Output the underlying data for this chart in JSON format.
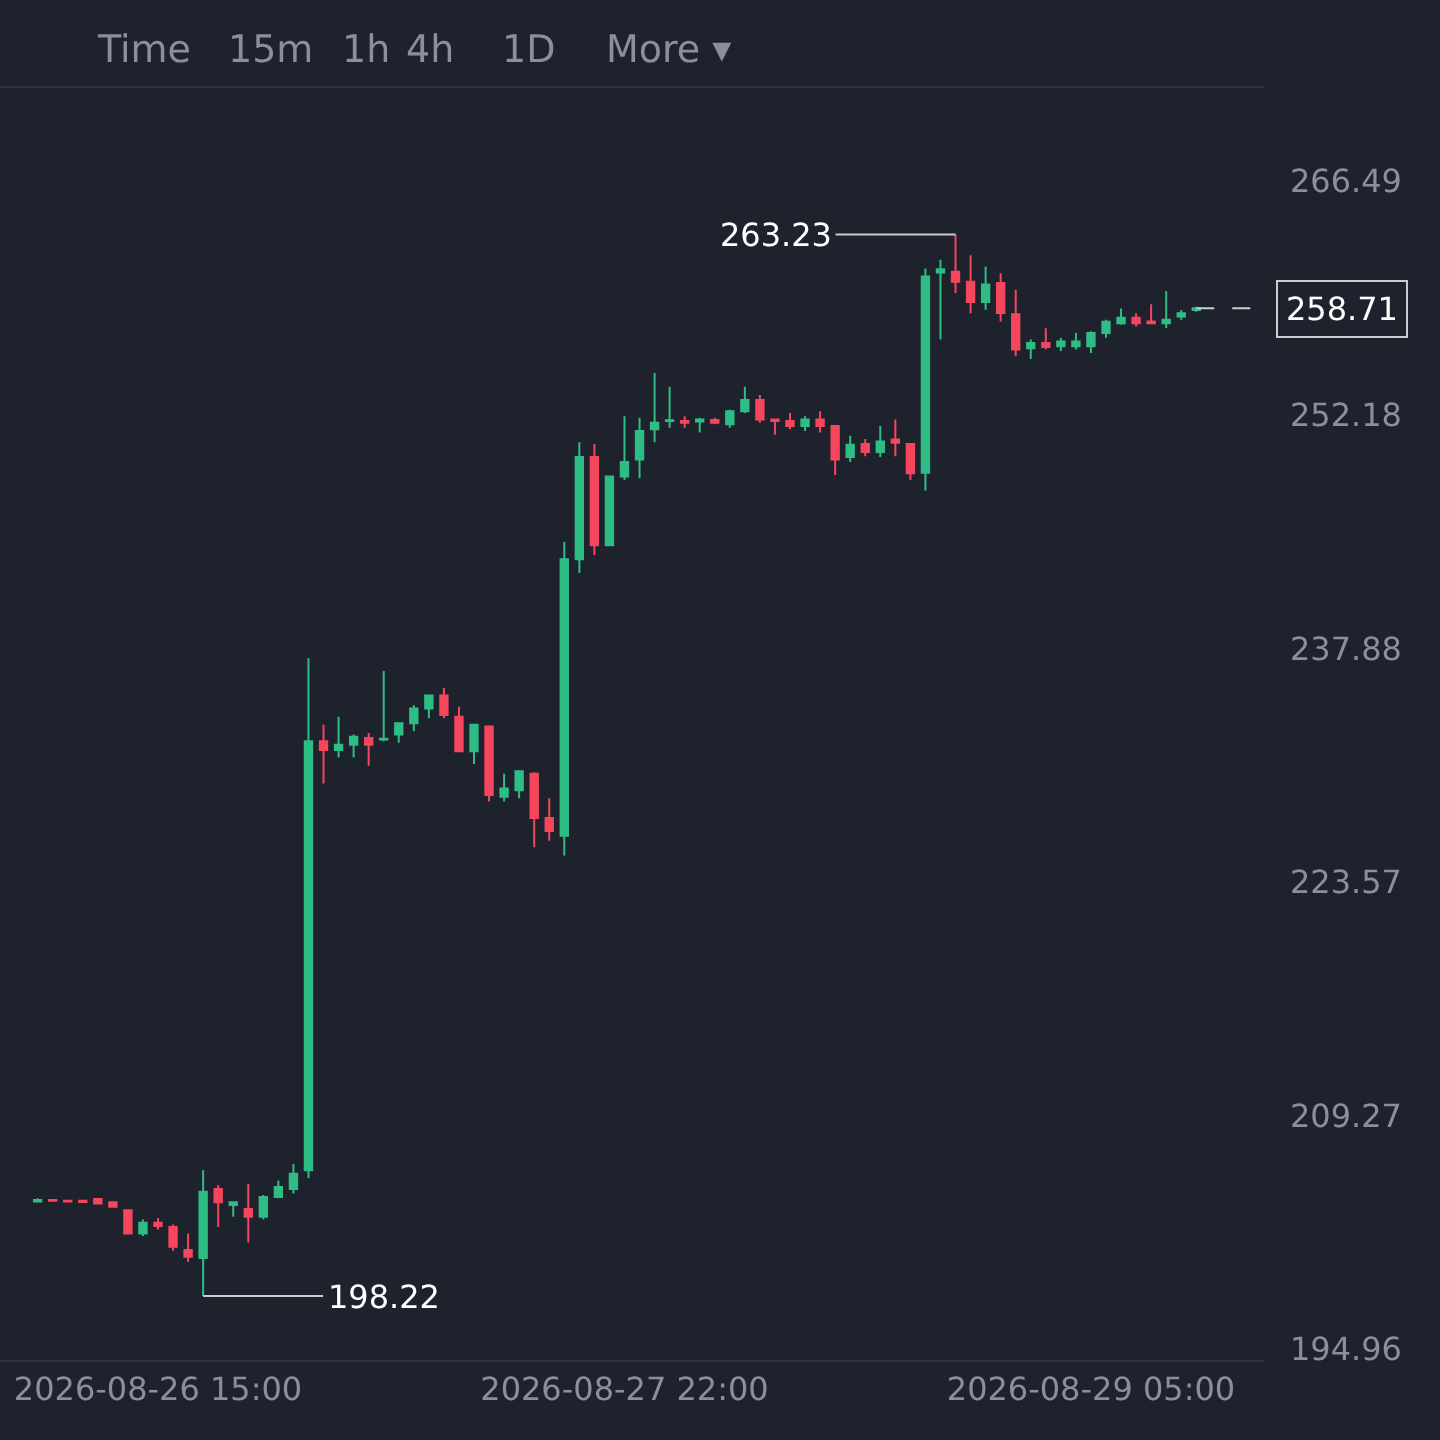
{
  "chart_data": {
    "type": "candlestick",
    "x": [
      "2026-08-26T07:00",
      "2026-08-26T08:00",
      "2026-08-26T09:00",
      "2026-08-26T10:00",
      "2026-08-26T11:00",
      "2026-08-26T12:00",
      "2026-08-26T13:00",
      "2026-08-26T14:00",
      "2026-08-26T15:00",
      "2026-08-26T16:00",
      "2026-08-26T17:00",
      "2026-08-26T18:00",
      "2026-08-26T19:00",
      "2026-08-26T20:00",
      "2026-08-26T21:00",
      "2026-08-26T22:00",
      "2026-08-26T23:00",
      "2026-08-27T00:00",
      "2026-08-27T01:00",
      "2026-08-27T02:00",
      "2026-08-27T03:00",
      "2026-08-27T04:00",
      "2026-08-27T05:00",
      "2026-08-27T06:00",
      "2026-08-27T07:00",
      "2026-08-27T08:00",
      "2026-08-27T09:00",
      "2026-08-27T10:00",
      "2026-08-27T11:00",
      "2026-08-27T12:00",
      "2026-08-27T13:00",
      "2026-08-27T14:00",
      "2026-08-27T15:00",
      "2026-08-27T16:00",
      "2026-08-27T17:00",
      "2026-08-27T18:00",
      "2026-08-27T19:00",
      "2026-08-27T20:00",
      "2026-08-27T21:00",
      "2026-08-27T22:00",
      "2026-08-27T23:00",
      "2026-08-28T00:00",
      "2026-08-28T01:00",
      "2026-08-28T02:00",
      "2026-08-28T03:00",
      "2026-08-28T04:00",
      "2026-08-28T05:00",
      "2026-08-28T06:00",
      "2026-08-28T07:00",
      "2026-08-28T08:00",
      "2026-08-28T09:00",
      "2026-08-28T10:00",
      "2026-08-28T11:00",
      "2026-08-28T12:00",
      "2026-08-28T13:00",
      "2026-08-28T14:00",
      "2026-08-28T15:00",
      "2026-08-28T16:00",
      "2026-08-28T17:00",
      "2026-08-28T18:00",
      "2026-08-28T19:00",
      "2026-08-28T20:00",
      "2026-08-28T21:00",
      "2026-08-28T22:00",
      "2026-08-28T23:00",
      "2026-08-29T00:00",
      "2026-08-29T01:00",
      "2026-08-29T02:00",
      "2026-08-29T03:00",
      "2026-08-29T04:00",
      "2026-08-29T05:00",
      "2026-08-29T06:00",
      "2026-08-29T07:00",
      "2026-08-29T08:00",
      "2026-08-29T09:00",
      "2026-08-29T10:00",
      "2026-08-29T11:00",
      "2026-08-29T12:00"
    ],
    "ohlc": [
      [
        204.0,
        204.2,
        204.0,
        204.1
      ],
      [
        204.1,
        204.15,
        204.0,
        204.05
      ],
      [
        204.05,
        204.1,
        203.95,
        204.0
      ],
      [
        204.05,
        204.1,
        203.95,
        203.98
      ],
      [
        204.16,
        204.2,
        203.85,
        203.88
      ],
      [
        203.96,
        204.0,
        203.65,
        203.68
      ],
      [
        203.47,
        203.5,
        202.0,
        202.05
      ],
      [
        202.05,
        202.9,
        201.9,
        202.7
      ],
      [
        202.7,
        203.0,
        202.3,
        202.5
      ],
      [
        202.45,
        202.6,
        200.99,
        201.23
      ],
      [
        201.03,
        202.05,
        200.3,
        200.62
      ],
      [
        200.54,
        205.92,
        198.22,
        204.61
      ],
      [
        204.78,
        205.02,
        202.45,
        203.96
      ],
      [
        203.8,
        204.0,
        203.07,
        203.96
      ],
      [
        203.55,
        205.1,
        201.5,
        203.07
      ],
      [
        203.07,
        204.4,
        202.9,
        204.29
      ],
      [
        204.29,
        205.3,
        204.2,
        204.9
      ],
      [
        204.78,
        206.3,
        204.5,
        205.71
      ],
      [
        205.92,
        237.28,
        205.43,
        232.19
      ],
      [
        232.19,
        233.2,
        229.6,
        231.66
      ],
      [
        231.66,
        233.7,
        231.2,
        231.98
      ],
      [
        231.98,
        232.6,
        231.2,
        232.47
      ],
      [
        232.39,
        232.7,
        230.7,
        231.98
      ],
      [
        232.3,
        236.5,
        232.2,
        232.35
      ],
      [
        232.6,
        233.3,
        232.1,
        233.3
      ],
      [
        233.3,
        234.4,
        232.8,
        234.2
      ],
      [
        234.2,
        235.0,
        233.6,
        235.0
      ],
      [
        235.0,
        235.45,
        233.6,
        233.8
      ],
      [
        233.7,
        234.3,
        231.58,
        231.58
      ],
      [
        231.58,
        233.2,
        230.8,
        233.2
      ],
      [
        233.1,
        233.1,
        228.5,
        228.9
      ],
      [
        228.8,
        230.2,
        228.5,
        229.3
      ],
      [
        229.2,
        230.4,
        228.7,
        230.35
      ],
      [
        230.2,
        230.3,
        225.7,
        227.5
      ],
      [
        227.5,
        228.7,
        226.1,
        226.7
      ],
      [
        226.4,
        244.4,
        225.2,
        243.34
      ],
      [
        243.34,
        250.5,
        242.5,
        249.6
      ],
      [
        249.6,
        250.4,
        243.6,
        244.2
      ],
      [
        244.2,
        248.4,
        244.2,
        248.4
      ],
      [
        248.4,
        252.1,
        248.2,
        249.3
      ],
      [
        249.45,
        252.0,
        248.3,
        251.2
      ],
      [
        251.3,
        254.75,
        250.5,
        251.7
      ],
      [
        251.8,
        253.9,
        251.4,
        251.85
      ],
      [
        251.81,
        252.1,
        251.4,
        251.7
      ],
      [
        251.77,
        252.0,
        251.1,
        251.9
      ],
      [
        251.86,
        252.0,
        251.6,
        251.7
      ],
      [
        251.6,
        252.5,
        251.4,
        252.4
      ],
      [
        252.4,
        253.9,
        252.3,
        253.1
      ],
      [
        253.1,
        253.4,
        251.7,
        251.9
      ],
      [
        251.9,
        251.9,
        250.96,
        251.8
      ],
      [
        251.8,
        252.3,
        251.3,
        251.5
      ],
      [
        251.5,
        252.1,
        251.2,
        251.9
      ],
      [
        251.9,
        252.4,
        251.1,
        251.5
      ],
      [
        251.5,
        251.5,
        248.5,
        249.45
      ],
      [
        249.6,
        250.9,
        249.3,
        250.35
      ],
      [
        250.4,
        250.7,
        249.65,
        249.9
      ],
      [
        249.9,
        251.5,
        249.6,
        250.55
      ],
      [
        250.67,
        251.9,
        249.65,
        250.47
      ],
      [
        250.4,
        250.4,
        248.2,
        248.6
      ],
      [
        248.64,
        261.15,
        247.55,
        260.66
      ],
      [
        260.9,
        261.68,
        256.8,
        261.1
      ],
      [
        260.94,
        263.23,
        259.64,
        260.33
      ],
      [
        260.33,
        261.96,
        258.4,
        259.1
      ],
      [
        259.1,
        261.27,
        258.62,
        260.17
      ],
      [
        260.25,
        260.86,
        257.9,
        258.42
      ],
      [
        258.34,
        259.84,
        255.77,
        256.18
      ],
      [
        256.26,
        256.8,
        255.6,
        256.59
      ],
      [
        256.59,
        257.48,
        256.18,
        256.34
      ],
      [
        256.38,
        256.9,
        256.1,
        256.67
      ],
      [
        256.38,
        257.2,
        256.18,
        256.67
      ],
      [
        256.38,
        257.3,
        255.97,
        257.2
      ],
      [
        257.2,
        258.0,
        256.9,
        257.89
      ],
      [
        257.8,
        258.7,
        257.7,
        258.13
      ],
      [
        258.13,
        258.4,
        257.6,
        257.8
      ],
      [
        257.9,
        258.95,
        257.8,
        257.8
      ],
      [
        257.8,
        259.76,
        257.5,
        258.0
      ],
      [
        258.2,
        258.6,
        258.0,
        258.4
      ],
      [
        258.6,
        258.8,
        258.5,
        258.71
      ]
    ],
    "colors": [
      "#2ebd85",
      "#f6465d",
      "#f6465d",
      "#f6465d",
      "#f6465d",
      "#f6465d",
      "#f6465d",
      "#2ebd85",
      "#f6465d",
      "#f6465d",
      "#f6465d",
      "#2ebd85",
      "#f6465d",
      "#2ebd85",
      "#f6465d",
      "#2ebd85",
      "#2ebd85",
      "#2ebd85",
      "#2ebd85",
      "#f6465d",
      "#2ebd85",
      "#2ebd85",
      "#f6465d",
      "#2ebd85",
      "#2ebd85",
      "#2ebd85",
      "#2ebd85",
      "#f6465d",
      "#f6465d",
      "#2ebd85",
      "#f6465d",
      "#2ebd85",
      "#2ebd85",
      "#f6465d",
      "#f6465d",
      "#2ebd85",
      "#2ebd85",
      "#f6465d",
      "#2ebd85",
      "#2ebd85",
      "#2ebd85",
      "#2ebd85",
      "#2ebd85",
      "#f6465d",
      "#2ebd85",
      "#f6465d",
      "#2ebd85",
      "#2ebd85",
      "#f6465d",
      "#f6465d",
      "#f6465d",
      "#2ebd85",
      "#f6465d",
      "#f6465d",
      "#2ebd85",
      "#f6465d",
      "#2ebd85",
      "#f6465d",
      "#f6465d",
      "#2ebd85",
      "#2ebd85",
      "#f6465d",
      "#f6465d",
      "#2ebd85",
      "#f6465d",
      "#f6465d",
      "#2ebd85",
      "#f6465d",
      "#2ebd85",
      "#2ebd85",
      "#2ebd85",
      "#2ebd85",
      "#2ebd85",
      "#f6465d",
      "#f6465d",
      "#2ebd85",
      "#2ebd85",
      "#2ebd85"
    ],
    "xlim": [
      "2026-08-26T04:30",
      "2026-08-29T16:30"
    ],
    "xticks": [
      {
        "value": "2026-08-26T15:00",
        "label": "2026-08-26 15:00"
      },
      {
        "value": "2026-08-27T22:00",
        "label": "2026-08-27 22:00"
      },
      {
        "value": "2026-08-29T05:00",
        "label": "2026-08-29 05:00"
      }
    ],
    "ylim": [
      194.3,
      272.2
    ],
    "yticks": [
      194.96,
      209.27,
      223.57,
      237.88,
      252.18,
      266.49
    ],
    "ref_lines": [
      {
        "axis": "y",
        "value": 258.71,
        "label": "258.71",
        "line_style": "dashed",
        "color": "#c8ccd4"
      }
    ],
    "annotations": [
      "Time",
      "15m",
      "1h",
      "4h",
      "1D",
      "More ▾",
      {
        "text": "263.23",
        "x": "2026-08-28T20:00",
        "y": 263.23
      },
      {
        "text": "198.22",
        "x": "2026-08-26T18:00",
        "y": 198.22
      }
    ]
  }
}
